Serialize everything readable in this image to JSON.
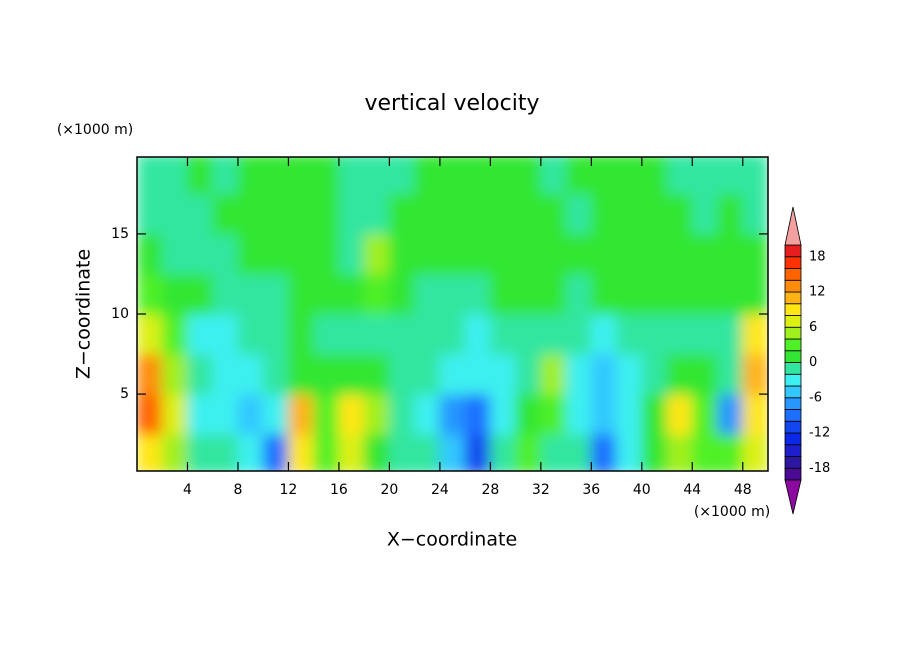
{
  "chart_data": {
    "type": "contour",
    "title": "vertical velocity",
    "x_label": "X−coordinate",
    "y_label": "Z−coordinate",
    "x_unit": "(×1000 m)",
    "y_unit": "(×1000 m)",
    "xlim": [
      0,
      50
    ],
    "ylim": [
      0.2,
      19.8
    ],
    "xticks": [
      4,
      8,
      12,
      16,
      20,
      24,
      28,
      32,
      36,
      40,
      44,
      48
    ],
    "yticks": [
      5,
      10,
      15
    ],
    "x": [
      1,
      3,
      5,
      7,
      9,
      11,
      13,
      15,
      17,
      19,
      21,
      23,
      25,
      27,
      29,
      31,
      33,
      35,
      37,
      39,
      41,
      43,
      45,
      47,
      49
    ],
    "y": [
      1.25,
      3.75,
      6.25,
      8.75,
      11.25,
      13.75,
      16.25,
      18.75
    ],
    "z": [
      [
        8,
        4,
        -1,
        -2,
        -4,
        -9,
        9,
        3,
        7,
        1,
        -1,
        -2,
        -5,
        -12,
        -2,
        2,
        -1,
        -2,
        -10,
        -3,
        1,
        5,
        3,
        2,
        6
      ],
      [
        14,
        6,
        -3,
        -4,
        -5,
        -4,
        11,
        2,
        8,
        4,
        -1,
        -3,
        -8,
        -10,
        -3,
        1,
        3,
        -3,
        -6,
        -3,
        1,
        8,
        3,
        -7,
        8
      ],
      [
        12,
        5,
        -2,
        -4,
        -3,
        -2,
        1,
        1,
        1,
        1,
        -1,
        -2,
        -3,
        -4,
        -3,
        -1,
        5,
        -3,
        -5,
        -3,
        -1,
        1,
        1,
        -2,
        10
      ],
      [
        6,
        2,
        -3,
        -3,
        -2,
        -1,
        0,
        -1,
        -1,
        -1,
        -1,
        -2,
        -2,
        -3,
        -2,
        -1,
        -1,
        -2,
        -3,
        -2,
        -1,
        -1,
        -2,
        -2,
        8
      ],
      [
        2,
        1,
        0,
        -1,
        -1,
        -1,
        1,
        1,
        0,
        3,
        1,
        -1,
        -1,
        -1,
        1,
        1,
        0,
        -1,
        1,
        1,
        1,
        0,
        0,
        0,
        1
      ],
      [
        1,
        -1,
        -1,
        -1,
        0,
        1,
        1,
        0,
        -1,
        5,
        1,
        1,
        1,
        1,
        1,
        1,
        1,
        0,
        1,
        1,
        1,
        1,
        1,
        1,
        1
      ],
      [
        -1,
        -1,
        -1,
        1,
        1,
        1,
        0,
        1,
        -1,
        -1,
        1,
        1,
        1,
        1,
        1,
        1,
        0,
        -1,
        1,
        1,
        1,
        0,
        -1,
        1,
        -1
      ],
      [
        -1,
        -1,
        1,
        -1,
        1,
        1,
        1,
        1,
        -1,
        -1,
        -1,
        1,
        1,
        1,
        1,
        1,
        -1,
        1,
        1,
        1,
        1,
        -1,
        -1,
        -1,
        -1
      ]
    ],
    "levels": [
      -20,
      -18,
      -16,
      -14,
      -12,
      -10,
      -8,
      -6,
      -4,
      -2,
      0,
      2,
      4,
      6,
      8,
      10,
      12,
      14,
      16,
      18,
      20
    ],
    "colors": [
      "#4b0a96",
      "#2d16a0",
      "#1e1ecd",
      "#0a28e6",
      "#1446f0",
      "#1e6eff",
      "#2896ff",
      "#32c8ff",
      "#3cf0f0",
      "#32e6a0",
      "#33e633",
      "#50f028",
      "#a0f01e",
      "#dcf014",
      "#ffe614",
      "#ffb414",
      "#ff8c0a",
      "#ff6400",
      "#ff3200",
      "#e61e1e"
    ],
    "under_color": "#8c0aa0",
    "over_color": "#f5a0a0",
    "colorbar_ticks": [
      -18,
      -12,
      -6,
      0,
      6,
      12,
      18
    ]
  }
}
